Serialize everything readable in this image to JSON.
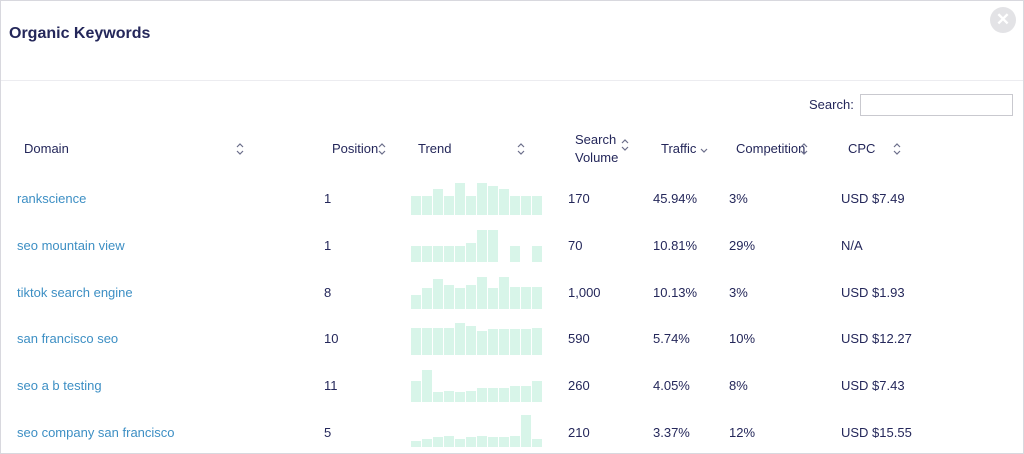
{
  "modal": {
    "title": "Organic Keywords",
    "close_glyph": "✕"
  },
  "search": {
    "label": "Search:",
    "value": "",
    "placeholder": ""
  },
  "columns": {
    "domain": "Domain",
    "position": "Position",
    "trend": "Trend",
    "search_volume_line1": "Search",
    "search_volume_line2": "Volume",
    "traffic": "Traffic",
    "competition": "Competition",
    "cpc": "CPC"
  },
  "icons": {
    "sort": "sort-icon",
    "close": "close-icon"
  },
  "colors": {
    "link": "#3d8fc4",
    "trend_bar": "#d8f5e9",
    "text": "#24275a"
  },
  "rows": [
    {
      "domain": "rankscience",
      "position": "1",
      "search_volume": "170",
      "traffic": "45.94%",
      "competition": "3%",
      "cpc": "USD $7.49",
      "trend": [
        0.6,
        0.6,
        0.8,
        0.6,
        1.0,
        0.6,
        1.0,
        0.9,
        0.8,
        0.6,
        0.6,
        0.6
      ]
    },
    {
      "domain": "seo mountain view",
      "position": "1",
      "search_volume": "70",
      "traffic": "10.81%",
      "competition": "29%",
      "cpc": "N/A",
      "trend": [
        0.5,
        0.5,
        0.5,
        0.5,
        0.5,
        0.6,
        1.0,
        1.0,
        0,
        0.5,
        0,
        0.5
      ]
    },
    {
      "domain": "tiktok search engine",
      "position": "8",
      "search_volume": "1,000",
      "traffic": "10.13%",
      "competition": "3%",
      "cpc": "USD $1.93",
      "trend": [
        0.45,
        0.65,
        0.95,
        0.75,
        0.65,
        0.75,
        1.0,
        0.65,
        1.0,
        0.7,
        0.7,
        0.7
      ]
    },
    {
      "domain": "san francisco seo",
      "position": "10",
      "search_volume": "590",
      "traffic": "5.74%",
      "competition": "10%",
      "cpc": "USD $12.27",
      "trend": [
        0.85,
        0.85,
        0.85,
        0.85,
        1.0,
        0.9,
        0.75,
        0.8,
        0.8,
        0.8,
        0.8,
        0.85
      ]
    },
    {
      "domain": "seo a b testing",
      "position": "11",
      "search_volume": "260",
      "traffic": "4.05%",
      "competition": "8%",
      "cpc": "USD $7.43",
      "trend": [
        0.65,
        1.0,
        0.3,
        0.35,
        0.3,
        0.35,
        0.45,
        0.45,
        0.45,
        0.5,
        0.5,
        0.65
      ]
    },
    {
      "domain": "seo company san francisco",
      "position": "5",
      "search_volume": "210",
      "traffic": "3.37%",
      "competition": "12%",
      "cpc": "USD $15.55",
      "trend": [
        0.2,
        0.25,
        0.3,
        0.35,
        0.25,
        0.3,
        0.35,
        0.3,
        0.3,
        0.35,
        1.0,
        0.25
      ]
    }
  ]
}
